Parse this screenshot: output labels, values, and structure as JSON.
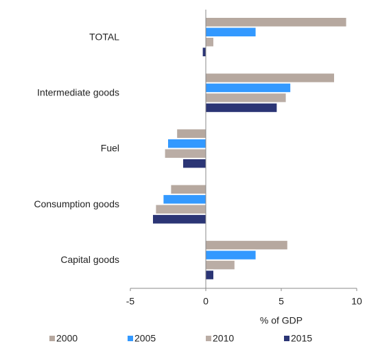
{
  "chart_data": {
    "type": "hbar",
    "categories": [
      "TOTAL",
      "Intermediate goods",
      "Fuel",
      "Consumption goods",
      "Capital goods"
    ],
    "series": [
      {
        "name": "2000",
        "color": "#b6a89f",
        "values": [
          9.3,
          8.5,
          -1.9,
          -2.3,
          5.4
        ]
      },
      {
        "name": "2005",
        "color": "#3399ff",
        "values": [
          3.3,
          5.6,
          -2.5,
          -2.8,
          3.3
        ]
      },
      {
        "name": "2010",
        "color": "#baada5",
        "values": [
          0.5,
          5.3,
          -2.7,
          -3.3,
          1.9
        ]
      },
      {
        "name": "2015",
        "color": "#2b3575",
        "values": [
          -0.2,
          4.7,
          -1.5,
          -3.5,
          0.5
        ]
      }
    ],
    "xlabel": "% of GDP",
    "xlim": [
      -5,
      10
    ],
    "xticks": [
      -5,
      0,
      5,
      10
    ],
    "legend": "bottom"
  }
}
